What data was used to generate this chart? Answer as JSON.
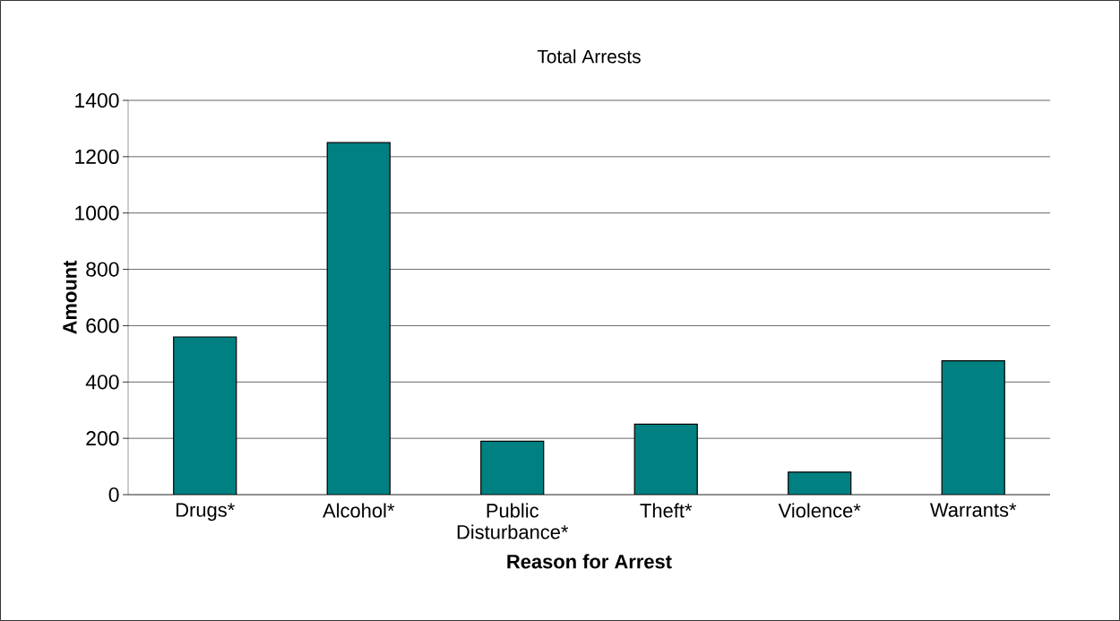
{
  "chart_data": {
    "type": "bar",
    "title": "Total Arrests",
    "xlabel": "Reason for Arrest",
    "ylabel": "Amount",
    "categories": [
      "Drugs*",
      "Alcohol*",
      "Public Disturbance*",
      "Theft*",
      "Violence*",
      "Warrants*"
    ],
    "values": [
      560,
      1250,
      190,
      250,
      80,
      475
    ],
    "color": "#008080",
    "ylim": [
      0,
      1400
    ],
    "yticks": [
      0,
      200,
      400,
      600,
      800,
      1000,
      1200,
      1400
    ],
    "grid": "y"
  }
}
